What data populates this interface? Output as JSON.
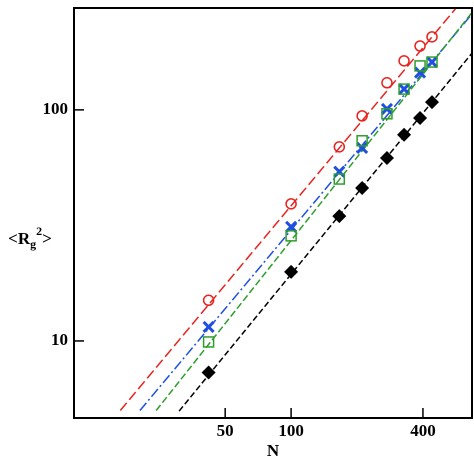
{
  "chart_data": {
    "type": "scatter",
    "x_label": "N",
    "y_label": {
      "open": "<R",
      "sub": "g",
      "sup": "2",
      "close": ">"
    },
    "xscale": "log",
    "yscale": "log",
    "xlim": [
      10.2,
      670
    ],
    "ylim": [
      4.64,
      276
    ],
    "xticks": [
      50,
      100,
      400
    ],
    "yticks": [
      10,
      100
    ],
    "x": [
      42,
      100,
      166,
      211,
      274,
      328,
      388,
      440
    ],
    "series": [
      {
        "color": "#e8221e",
        "marker": "circle",
        "values": [
          15.0,
          39.2,
          69.2,
          94.2,
          131,
          163,
          189,
          207
        ]
      },
      {
        "color": "#1f4fe0",
        "marker": "cross",
        "values": [
          11.5,
          31.2,
          54.0,
          68.4,
          101,
          123,
          145,
          161
        ]
      },
      {
        "color": "#2e9e2a",
        "marker": "square",
        "values": [
          9.9,
          28.5,
          50.2,
          73.5,
          96.2,
          123,
          155,
          161
        ]
      },
      {
        "color": "#000000",
        "marker": "diamond",
        "values": [
          7.3,
          19.9,
          34.7,
          45.9,
          61.9,
          78.0,
          92.2,
          108
        ]
      }
    ],
    "fit_lines": [
      {
        "color": "#e8221e",
        "dash": "10 4",
        "x": [
          16.6,
          567
        ],
        "values": [
          5.0,
          276
        ]
      },
      {
        "color": "#1f4fe0",
        "dash": "10 3 2 3",
        "x": [
          20.4,
          670
        ],
        "values": [
          5.0,
          260
        ]
      },
      {
        "color": "#2e9e2a",
        "dash": "7 3",
        "x": [
          24.2,
          670
        ],
        "values": [
          5.0,
          264
        ]
      },
      {
        "color": "#000000",
        "dash": "6 3",
        "x": [
          30.8,
          670
        ],
        "values": [
          4.97,
          176
        ]
      }
    ]
  }
}
